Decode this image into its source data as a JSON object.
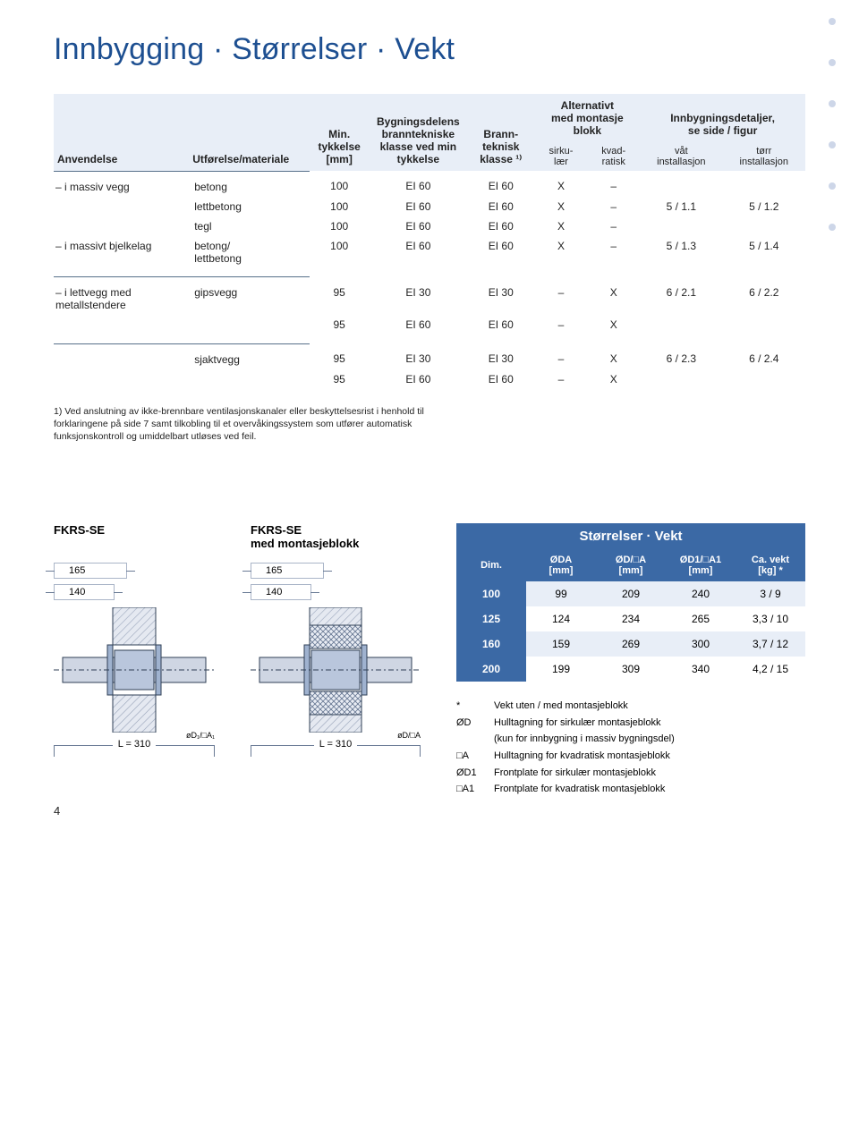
{
  "title": "Innbygging · Størrelser · Vekt",
  "spec_table": {
    "headers": {
      "application": "Anvendelse",
      "material": "Utførelse/materiale",
      "min_thick": "Min.\ntykkelse\n[mm]",
      "build_class": "Bygningsdelens\nbranntekniske\nklasse ved min\ntykkelse",
      "fire_class": "Brann-\nteknisk\nklasse ¹⁾",
      "alt_block": "Alternativt\nmed montasje\nblokk",
      "alt_sub": {
        "circular": "sirku-\nlær",
        "square": "kvad-\nratisk"
      },
      "install": "Innbygningsdetaljer,\nse side / figur",
      "install_sub": {
        "wet": "våt\ninstallasjon",
        "dry": "tørr\ninstallasjon"
      }
    },
    "groups": [
      {
        "rows": [
          {
            "app": "– i massiv vegg",
            "mat": "betong",
            "min": "100",
            "build": "EI 60",
            "fire": "EI 60",
            "circ": "X",
            "sq": "–",
            "wet": "",
            "dry": ""
          },
          {
            "app": "",
            "mat": "lettbetong",
            "min": "100",
            "build": "EI 60",
            "fire": "EI 60",
            "circ": "X",
            "sq": "–",
            "wet": "5 / 1.1",
            "dry": "5 / 1.2"
          },
          {
            "app": "",
            "mat": "tegl",
            "min": "100",
            "build": "EI 60",
            "fire": "EI 60",
            "circ": "X",
            "sq": "–",
            "wet": "",
            "dry": ""
          },
          {
            "app": "– i massivt bjelkelag",
            "mat": "betong/\nlettbetong",
            "min": "100",
            "build": "EI 60",
            "fire": "EI 60",
            "circ": "X",
            "sq": "–",
            "wet": "5 / 1.3",
            "dry": "5 / 1.4"
          }
        ]
      },
      {
        "rows": [
          {
            "app": "– i lettvegg med\n   metallstendere",
            "mat": "gipsvegg",
            "min": "95",
            "build": "EI 30",
            "fire": "EI 30",
            "circ": "–",
            "sq": "X",
            "wet": "6 / 2.1",
            "dry": "6 / 2.2"
          },
          {
            "app": "",
            "mat": "",
            "min": "95",
            "build": "EI 60",
            "fire": "EI 60",
            "circ": "–",
            "sq": "X",
            "wet": "",
            "dry": ""
          }
        ]
      },
      {
        "rows": [
          {
            "app": "",
            "mat": "sjaktvegg",
            "min": "95",
            "build": "EI 30",
            "fire": "EI 30",
            "circ": "–",
            "sq": "X",
            "wet": "6 / 2.3",
            "dry": "6 / 2.4"
          },
          {
            "app": "",
            "mat": "",
            "min": "95",
            "build": "EI 60",
            "fire": "EI 60",
            "circ": "–",
            "sq": "X",
            "wet": "",
            "dry": ""
          }
        ]
      }
    ]
  },
  "footnote": "1) Ved anslutning av ikke-brennbare ventilasjonskanaler eller beskyttelsesrist i henhold til forklaringene på side 7 samt tilkobling til et overvåkingssystem som utfører automatisk funksjonskontroll og umiddelbart utløses ved feil.",
  "figures": {
    "fig1": {
      "title": "FKRS-SE",
      "tag1": "165",
      "tag2": "140",
      "bottom": "L = 310",
      "axis": "øD₁/□A₁"
    },
    "fig2": {
      "title": "FKRS-SE\nmed montasjeblokk",
      "tag1": "165",
      "tag2": "140",
      "bottom": "L = 310",
      "axis": "øD/□A"
    },
    "colors": {
      "band": "#3b69a5",
      "hatch": "#d8dde6",
      "outline": "#2f3f55",
      "body": "#cfd6e3"
    }
  },
  "sizes": {
    "title": "Størrelser · Vekt",
    "headers": {
      "dim": "Dim.",
      "oda": "ØDA\n[mm]",
      "oda2": "ØD/□A\n[mm]",
      "oda3": "ØD1/□A1\n[mm]",
      "wt": "Ca. vekt\n[kg] *"
    },
    "rows": [
      {
        "dim": "100",
        "a": "99",
        "b": "209",
        "c": "240",
        "w": "3 / 9"
      },
      {
        "dim": "125",
        "a": "124",
        "b": "234",
        "c": "265",
        "w": "3,3 / 10"
      },
      {
        "dim": "160",
        "a": "159",
        "b": "269",
        "c": "300",
        "w": "3,7 / 12"
      },
      {
        "dim": "200",
        "a": "199",
        "b": "309",
        "c": "340",
        "w": "4,2 / 15"
      }
    ]
  },
  "legend": [
    {
      "k": "*",
      "t": "Vekt uten / med montasjeblokk"
    },
    {
      "k": "ØD",
      "t": "Hulltagning for sirkulær montasjeblokk\n(kun for innbygning i massiv bygningsdel)"
    },
    {
      "k": "□A",
      "t": "Hulltagning for kvadratisk montasjeblokk"
    },
    {
      "k": "ØD1",
      "t": "Frontplate for sirkulær montasjeblokk"
    },
    {
      "k": "□A1",
      "t": "Frontplate for kvadratisk montasjeblokk"
    }
  ],
  "page_number": "4"
}
